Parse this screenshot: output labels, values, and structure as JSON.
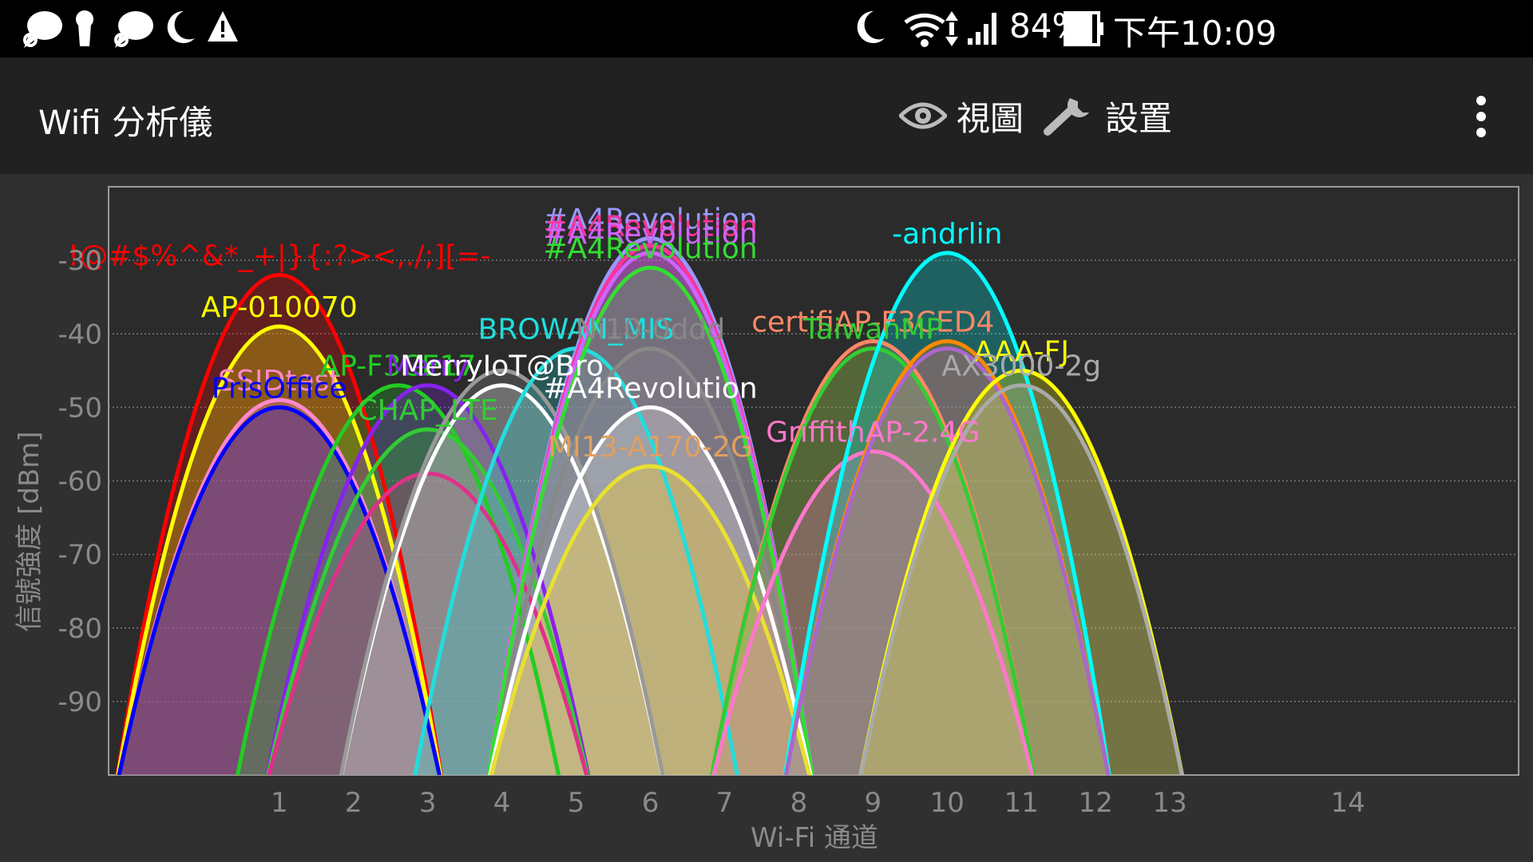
{
  "status_bar": {
    "left_icons": [
      "chat-bubble-icon",
      "keyhole-icon",
      "chat-bubble-icon",
      "moon-icon",
      "warning-icon"
    ],
    "right_icons": [
      "moon-icon",
      "wifi-icon",
      "signal-bars-icon",
      "battery-icon"
    ],
    "battery": "84%",
    "time": "下午10:09"
  },
  "app_bar": {
    "title": "Wifi 分析儀",
    "view_label": "視圖",
    "settings_label": "設置",
    "view_icon": "eye-icon",
    "settings_icon": "wrench-icon",
    "overflow_icon": "more-vert-icon"
  },
  "chart_data": {
    "type": "area",
    "xlabel": "Wi-Fi 通道",
    "ylabel": "信號強度 [dBm]",
    "ylim": [
      -100,
      -20
    ],
    "xlim": [
      -1.3,
      17.7
    ],
    "yticks": [
      "-30",
      "-40",
      "-50",
      "-60",
      "-70",
      "-80",
      "-90"
    ],
    "xticks": [
      "1",
      "2",
      "3",
      "4",
      "5",
      "6",
      "7",
      "8",
      "9",
      "10",
      "11",
      "12",
      "13",
      "14"
    ],
    "grid": true,
    "series": [
      {
        "name": "!@#$%^&*_+|}{:?><,./;][=-",
        "channel": 1,
        "level": -32,
        "color": "#ff0000"
      },
      {
        "name": "AP-010070",
        "channel": 1,
        "level": -39,
        "color": "#ffff00"
      },
      {
        "name": "SSIDtest",
        "channel": 1,
        "level": -49,
        "color": "#ff88cc"
      },
      {
        "name": "PrisOffice",
        "channel": 1,
        "level": -50,
        "color": "#0000ff"
      },
      {
        "name": "AP-F3CE17",
        "channel": 2.6,
        "level": -47,
        "color": "#22cc22"
      },
      {
        "name": "Merry",
        "channel": 3,
        "level": -47,
        "color": "#8822ee"
      },
      {
        "name": "CHAP_LTE",
        "channel": 3,
        "level": -53,
        "color": "#33cc33"
      },
      {
        "name": "",
        "channel": 3,
        "level": -59,
        "color": "#e0308a"
      },
      {
        "name": "MerryIoT@Bro",
        "channel": 4,
        "level": -47,
        "color": "#ffffff"
      },
      {
        "name": "",
        "channel": 4,
        "level": -45,
        "color": "#999999"
      },
      {
        "name": "BROWAN_MIS",
        "channel": 5,
        "level": -42,
        "color": "#22dddd"
      },
      {
        "name": "Ni10-0ddd",
        "channel": 6,
        "level": -42,
        "color": "#888888"
      },
      {
        "name": "#A4Revolution",
        "channel": 6,
        "level": -27,
        "color": "#9999ff"
      },
      {
        "name": "#A4Revolution",
        "channel": 6,
        "level": -28,
        "color": "#ff3399"
      },
      {
        "name": "#A4Revolution",
        "channel": 6,
        "level": -29,
        "color": "#cc66ff"
      },
      {
        "name": "#A4Revolution",
        "channel": 6,
        "level": -31,
        "color": "#33dd33"
      },
      {
        "name": "#A4Revolution",
        "channel": 6,
        "level": -50,
        "color": "#ffffff"
      },
      {
        "name": "MI13-A170-2G",
        "channel": 6,
        "level": -58,
        "color": "#e0a060"
      },
      {
        "name": "",
        "channel": 6,
        "level": -58,
        "color": "#e8e030"
      },
      {
        "name": "certifiAP-F3CED4",
        "channel": 9,
        "level": -41,
        "color": "#ff8866"
      },
      {
        "name": "TaiwanMP",
        "channel": 9,
        "level": -42,
        "color": "#33cc33"
      },
      {
        "name": "GriffithAP-2.4G",
        "channel": 9,
        "level": -56,
        "color": "#ff77cc"
      },
      {
        "name": "-andrlin",
        "channel": 10,
        "level": -29,
        "color": "#00ffff"
      },
      {
        "name": "",
        "channel": 10,
        "level": -41,
        "color": "#ff8800"
      },
      {
        "name": "",
        "channel": 10,
        "level": -42,
        "color": "#aa66cc"
      },
      {
        "name": "AAA-FJ",
        "channel": 11,
        "level": -45,
        "color": "#ffff00"
      },
      {
        "name": "AX3000-2g",
        "channel": 11,
        "level": -47,
        "color": "#aaaaaa"
      }
    ]
  }
}
